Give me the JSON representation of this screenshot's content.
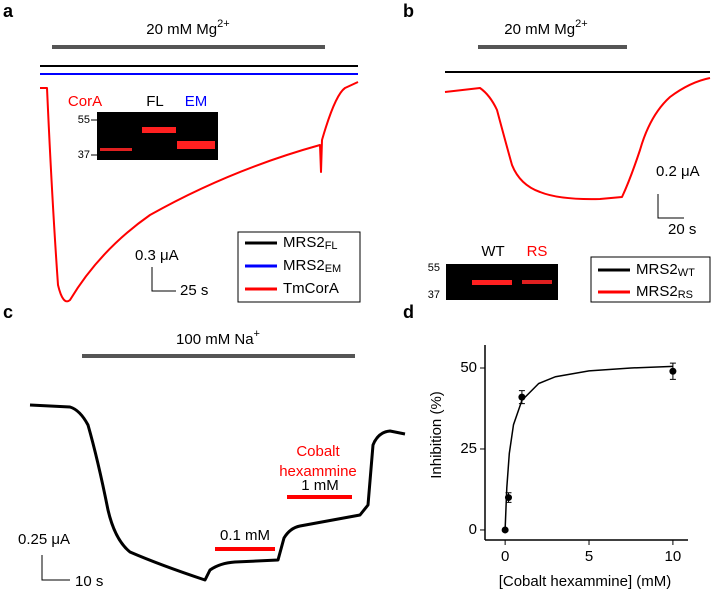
{
  "panels": [
    {
      "label": "a",
      "bar_text": "20 mM Mg",
      "bar_sup": "2+",
      "gel": {
        "markers": [
          "55",
          "37"
        ],
        "lanes": [
          "CorA",
          "FL",
          "EM"
        ]
      },
      "scale_y": "0.3 μA",
      "scale_x": "25 s",
      "legend": [
        {
          "name": "MRS2",
          "sub": "FL",
          "color": "#000000"
        },
        {
          "name": "MRS2",
          "sub": "EM",
          "color": "#0000ff"
        },
        {
          "name": "TmCorA",
          "color": "#ff0000"
        }
      ]
    },
    {
      "label": "b",
      "bar_text": "20 mM Mg",
      "bar_sup": "2+",
      "gel": {
        "markers": [
          "55",
          "37"
        ],
        "lanes": [
          "WT",
          "RS"
        ]
      },
      "scale_y": "0.2 μA",
      "scale_x": "20 s",
      "legend": [
        {
          "name": "MRS2",
          "sub": "WT",
          "color": "#000000"
        },
        {
          "name": "MRS2",
          "sub": "RS",
          "color": "#ff0000"
        }
      ]
    },
    {
      "label": "c",
      "bar_text": "100 mM Na",
      "bar_sup": "+",
      "annotation": [
        "Cobalt",
        "hexammine"
      ],
      "doses": [
        "0.1 mM",
        "1 mM"
      ],
      "scale_y": "0.25 μA",
      "scale_x": "10 s"
    }
  ],
  "chart_data": {
    "type": "scatter",
    "label": "d",
    "xlabel": "[Cobalt hexammine] (mM)",
    "ylabel": "Inhibition (%)",
    "x": [
      0,
      0.2,
      1,
      10
    ],
    "values": [
      0,
      10,
      41,
      49
    ],
    "errors": [
      0,
      1.5,
      2,
      2.5
    ],
    "color": "#000000",
    "fit": {
      "x": [
        0,
        0.1,
        0.25,
        0.5,
        1,
        2,
        3,
        5,
        7.5,
        10
      ],
      "values": [
        0,
        13,
        23.6,
        32.5,
        40,
        45.2,
        47.3,
        49.1,
        50,
        50.5
      ]
    },
    "xlim": [
      -1.2,
      10.9
    ],
    "ylim": [
      -3.1,
      57.1
    ],
    "xticks": [
      0,
      5,
      10
    ],
    "yticks": [
      0,
      25,
      50
    ]
  }
}
